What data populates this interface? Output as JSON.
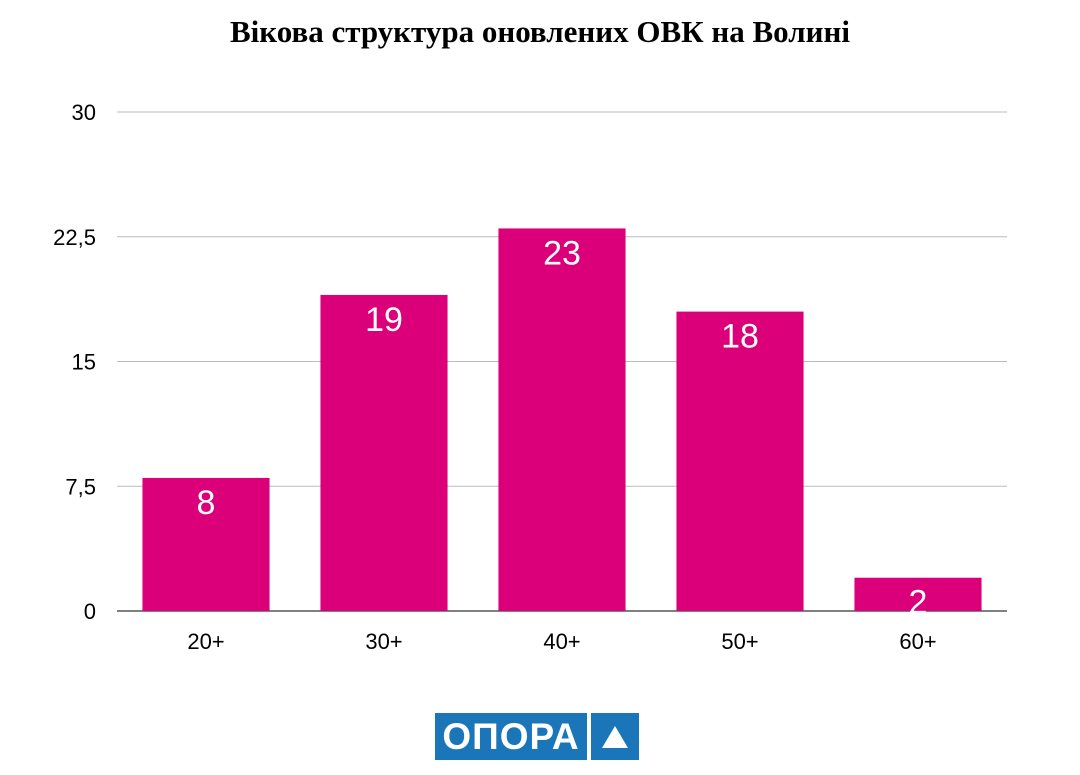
{
  "chart_data": {
    "type": "bar",
    "title": "Вікова структура оновлених ОВК на Волині",
    "xlabel": "",
    "ylabel": "",
    "categories": [
      "20+",
      "30+",
      "40+",
      "50+",
      "60+"
    ],
    "values": [
      8,
      19,
      23,
      18,
      2
    ],
    "data_labels": [
      "8",
      "19",
      "23",
      "18",
      "2"
    ],
    "ylim": [
      0,
      30
    ],
    "yticks": [
      0,
      7.5,
      15,
      22.5,
      30
    ],
    "ytick_labels": [
      "0",
      "7,5",
      "15",
      "22,5",
      "30"
    ],
    "grid": true,
    "legend": "none",
    "bar_color": "#db0079",
    "grid_color": "#bbbbbb"
  },
  "logo": {
    "text": "ОПОРА",
    "color": "#1a76b9",
    "icon": "triangle-icon"
  }
}
